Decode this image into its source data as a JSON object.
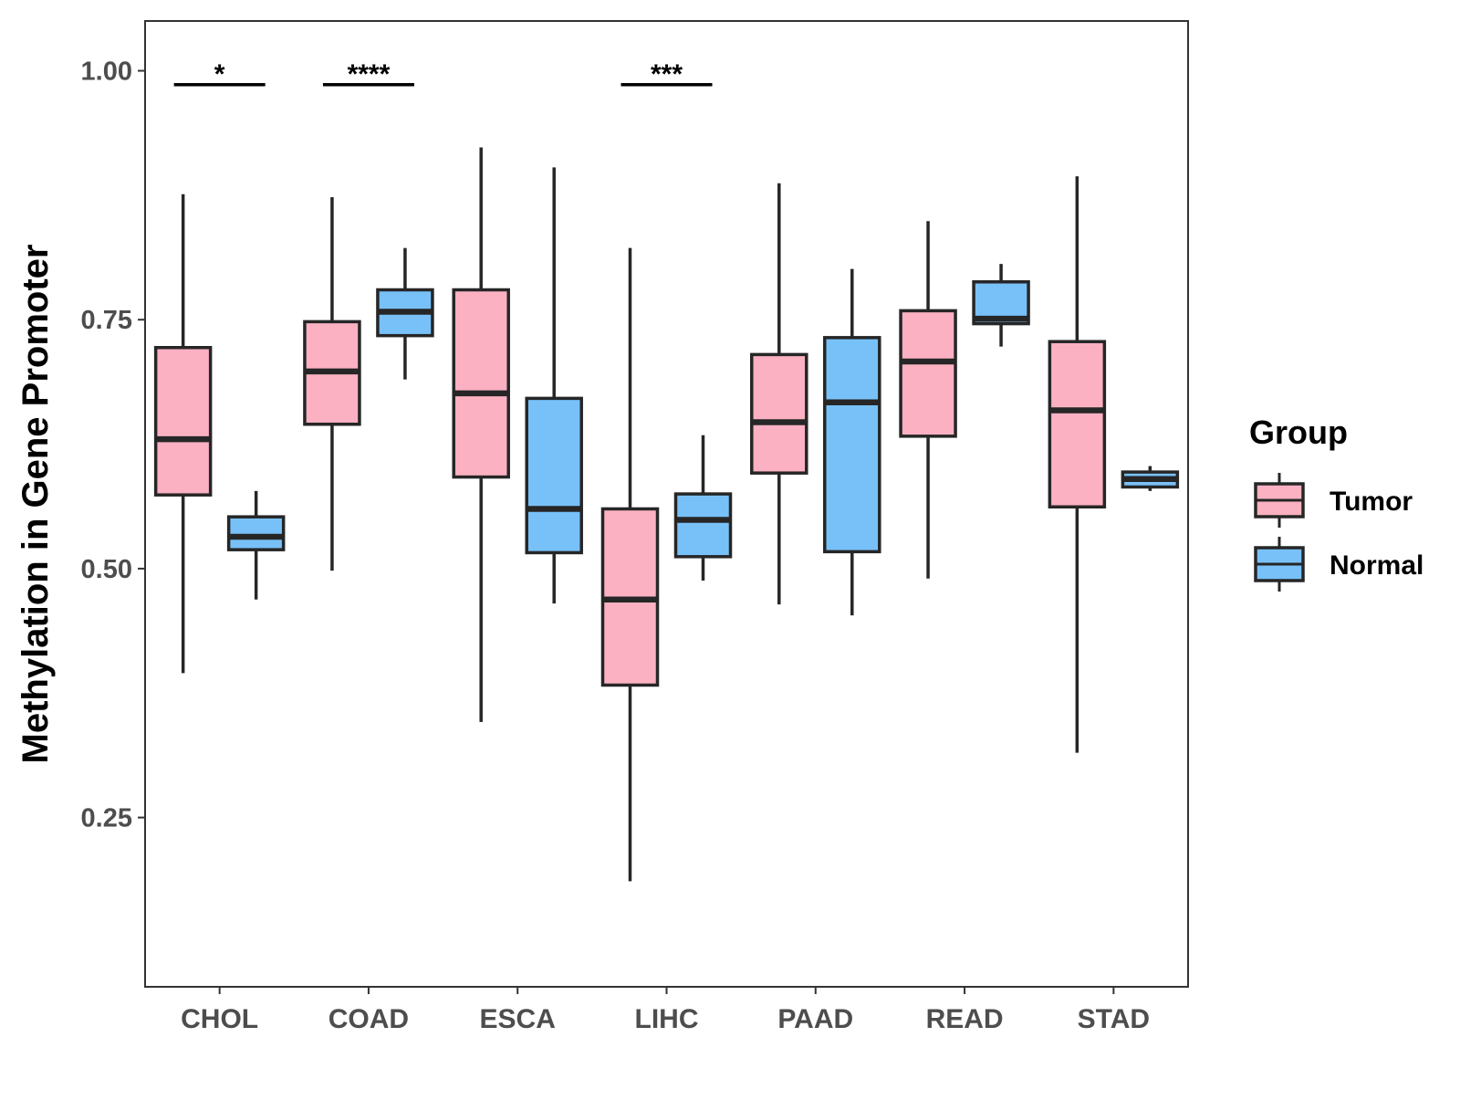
{
  "chart_data": {
    "type": "boxplot",
    "title": "",
    "xlabel": "",
    "ylabel": "Methylation in Gene Promoter",
    "ylim": [
      0.08,
      1.05
    ],
    "yticks": [
      0.25,
      0.5,
      0.75,
      1.0
    ],
    "ytick_labels": [
      "0.25",
      "0.50",
      "0.75",
      "1.00"
    ],
    "grid": false,
    "legend": {
      "title": "Group",
      "position": "right",
      "entries": [
        {
          "name": "Tumor",
          "color": "#fbb1c2"
        },
        {
          "name": "Normal",
          "color": "#78c1f8"
        }
      ]
    },
    "categories": [
      "CHOL",
      "COAD",
      "ESCA",
      "LIHC",
      "PAAD",
      "READ",
      "STAD"
    ],
    "series": [
      {
        "name": "Tumor",
        "color": "#fbb1c2",
        "boxes": [
          {
            "min": 0.395,
            "q1": 0.574,
            "median": 0.63,
            "q3": 0.722,
            "max": 0.876
          },
          {
            "min": 0.498,
            "q1": 0.645,
            "median": 0.698,
            "q3": 0.748,
            "max": 0.873
          },
          {
            "min": 0.346,
            "q1": 0.592,
            "median": 0.676,
            "q3": 0.78,
            "max": 0.923
          },
          {
            "min": 0.186,
            "q1": 0.383,
            "median": 0.469,
            "q3": 0.56,
            "max": 0.822
          },
          {
            "min": 0.464,
            "q1": 0.596,
            "median": 0.647,
            "q3": 0.715,
            "max": 0.887
          },
          {
            "min": 0.49,
            "q1": 0.633,
            "median": 0.708,
            "q3": 0.759,
            "max": 0.849
          },
          {
            "min": 0.315,
            "q1": 0.562,
            "median": 0.659,
            "q3": 0.728,
            "max": 0.894
          }
        ]
      },
      {
        "name": "Normal",
        "color": "#78c1f8",
        "boxes": [
          {
            "min": 0.469,
            "q1": 0.519,
            "median": 0.532,
            "q3": 0.552,
            "max": 0.578
          },
          {
            "min": 0.69,
            "q1": 0.734,
            "median": 0.758,
            "q3": 0.78,
            "max": 0.822
          },
          {
            "min": 0.465,
            "q1": 0.516,
            "median": 0.56,
            "q3": 0.671,
            "max": 0.903
          },
          {
            "min": 0.488,
            "q1": 0.512,
            "median": 0.549,
            "q3": 0.575,
            "max": 0.634
          },
          {
            "min": 0.453,
            "q1": 0.517,
            "median": 0.667,
            "q3": 0.732,
            "max": 0.801
          },
          {
            "min": 0.723,
            "q1": 0.746,
            "median": 0.751,
            "q3": 0.788,
            "max": 0.806
          },
          {
            "min": 0.578,
            "q1": 0.582,
            "median": 0.59,
            "q3": 0.597,
            "max": 0.603
          }
        ]
      }
    ],
    "significance": [
      {
        "category": "CHOL",
        "label": "*",
        "y": 0.986
      },
      {
        "category": "COAD",
        "label": "****",
        "y": 0.986
      },
      {
        "category": "LIHC",
        "label": "***",
        "y": 0.986
      }
    ]
  }
}
